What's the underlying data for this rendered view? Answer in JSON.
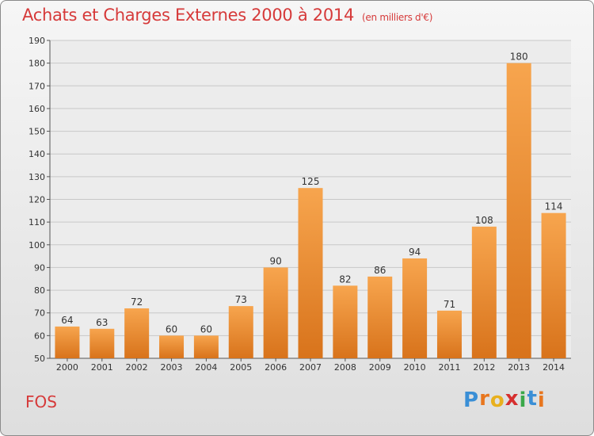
{
  "header": {
    "title": "Achats et Charges Externes 2000 à 2014",
    "unit": "(en milliers d'€)"
  },
  "footer": {
    "place": "FOS",
    "logo_letters": [
      "P",
      "r",
      "o",
      "x",
      "i",
      "t",
      "i"
    ],
    "logo_colors": [
      "#3a8fd6",
      "#e8761e",
      "#e8b01e",
      "#d62f2f",
      "#3aa84a",
      "#3a8fd6",
      "#e8761e"
    ]
  },
  "chart_data": {
    "type": "bar",
    "categories": [
      "2000",
      "2001",
      "2002",
      "2003",
      "2004",
      "2005",
      "2006",
      "2007",
      "2008",
      "2009",
      "2010",
      "2011",
      "2012",
      "2013",
      "2014"
    ],
    "values": [
      64,
      63,
      72,
      60,
      60,
      73,
      90,
      125,
      82,
      86,
      94,
      71,
      108,
      180,
      114
    ],
    "title": "Achats et Charges Externes 2000 à 2014",
    "xlabel": "",
    "ylabel": "",
    "ylim": [
      50,
      190
    ],
    "yticks": [
      50,
      60,
      70,
      80,
      90,
      100,
      110,
      120,
      130,
      140,
      150,
      160,
      170,
      180,
      190
    ],
    "grid": true,
    "bar_color_light": "#f7a54e",
    "bar_color_dark": "#d8731b"
  }
}
